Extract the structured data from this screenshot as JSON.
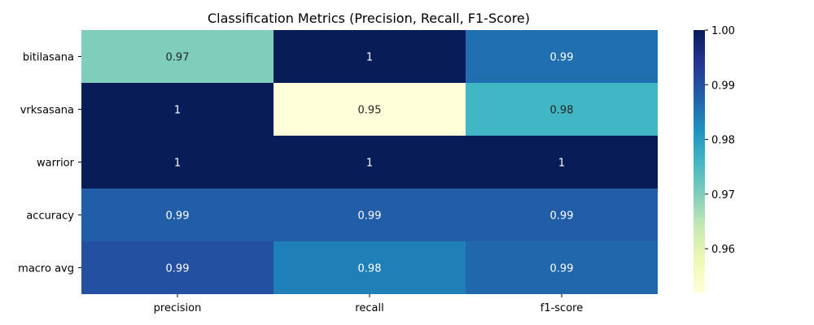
{
  "chart_data": {
    "type": "heatmap",
    "title": "Classification Metrics (Precision, Recall, F1-Score)",
    "xlabel": "",
    "ylabel": "",
    "columns": [
      "precision",
      "recall",
      "f1-score"
    ],
    "rows": [
      "bitilasana",
      "vrksasana",
      "warrior",
      "accuracy",
      "macro avg"
    ],
    "values": [
      [
        0.97,
        1.0,
        0.986
      ],
      [
        1.0,
        0.952,
        0.976
      ],
      [
        1.0,
        1.0,
        1.0
      ],
      [
        0.988,
        0.988,
        0.988
      ],
      [
        0.99,
        0.984,
        0.987
      ]
    ],
    "cell_labels": [
      [
        "0.97",
        "1",
        "0.99"
      ],
      [
        "1",
        "0.95",
        "0.98"
      ],
      [
        "1",
        "1",
        "1"
      ],
      [
        "0.99",
        "0.99",
        "0.99"
      ],
      [
        "0.99",
        "0.98",
        "0.99"
      ]
    ],
    "colormap": "YlGnBu",
    "vmin": 0.952,
    "vmax": 1.0,
    "colorbar": {
      "ticks": [
        0.96,
        0.97,
        0.98,
        0.99,
        1.0
      ],
      "tick_labels": [
        "0.96",
        "0.97",
        "0.98",
        "0.99",
        "1.00"
      ]
    },
    "colors": {
      "ylgnbu": [
        "#ffffd9",
        "#edf8b1",
        "#c7e9b4",
        "#7fcdbb",
        "#41b6c4",
        "#1d91c0",
        "#225ea8",
        "#253494",
        "#081d58"
      ],
      "label_light": "#ffffff",
      "label_dark": "#262626"
    }
  }
}
